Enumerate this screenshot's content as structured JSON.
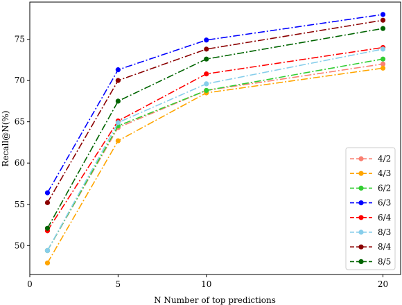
{
  "chart_data": {
    "type": "line",
    "title": "",
    "xlabel": "N  Number of top predictions",
    "ylabel": "Recall@N(%)",
    "xlim": [
      0,
      21
    ],
    "ylim": [
      46.5,
      79.5
    ],
    "x_ticks": [
      0,
      5,
      10,
      20
    ],
    "y_ticks": [
      50,
      55,
      60,
      65,
      70,
      75
    ],
    "grid": false,
    "legend_position": "lower-right",
    "line_style": "dash-dot",
    "x": [
      1,
      5,
      10,
      20
    ],
    "series": [
      {
        "name": "4/2",
        "color": "#fa8072",
        "values": [
          49.4,
          64.3,
          68.8,
          72.0
        ]
      },
      {
        "name": "4/3",
        "color": "#ffa500",
        "values": [
          47.9,
          62.7,
          68.5,
          71.5
        ]
      },
      {
        "name": "6/2",
        "color": "#32cd32",
        "values": [
          49.4,
          64.5,
          68.8,
          72.6
        ]
      },
      {
        "name": "6/3",
        "color": "#0000ff",
        "values": [
          56.4,
          71.3,
          74.9,
          78.0
        ]
      },
      {
        "name": "6/4",
        "color": "#ff0000",
        "values": [
          51.8,
          65.1,
          70.8,
          74.0
        ]
      },
      {
        "name": "8/3",
        "color": "#87ceeb",
        "values": [
          49.4,
          64.9,
          69.6,
          73.8
        ]
      },
      {
        "name": "8/4",
        "color": "#8b0000",
        "values": [
          55.2,
          70.0,
          73.8,
          77.3
        ]
      },
      {
        "name": "8/5",
        "color": "#006400",
        "values": [
          52.1,
          67.5,
          72.6,
          76.3
        ]
      }
    ]
  }
}
